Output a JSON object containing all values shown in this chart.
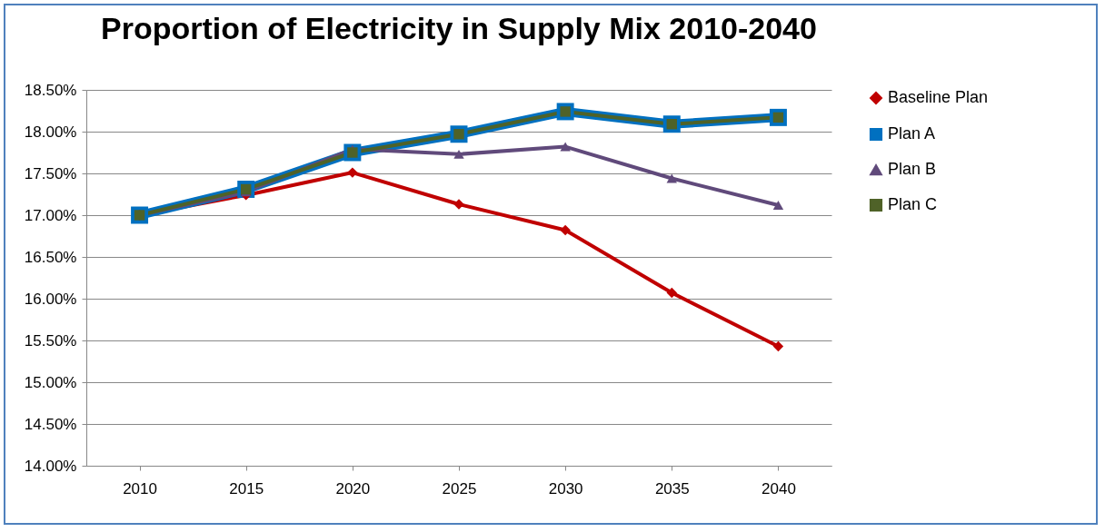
{
  "chart_data": {
    "type": "line",
    "title": "Proportion of Electricity in Supply Mix 2010-2040",
    "categories": [
      "2010",
      "2015",
      "2020",
      "2025",
      "2030",
      "2035",
      "2040"
    ],
    "series": [
      {
        "name": "Baseline Plan",
        "color": "#c00000",
        "marker": "diamond",
        "values": [
          17.0,
          17.24,
          17.51,
          17.13,
          16.82,
          16.07,
          15.43
        ]
      },
      {
        "name": "Plan A",
        "color": "#0070c0",
        "marker": "square",
        "values": [
          17.0,
          17.31,
          17.75,
          17.97,
          18.24,
          18.09,
          18.17
        ]
      },
      {
        "name": "Plan B",
        "color": "#604a7b",
        "marker": "triangle",
        "values": [
          17.0,
          17.28,
          17.79,
          17.73,
          17.82,
          17.44,
          17.12
        ]
      },
      {
        "name": "Plan C",
        "color": "#4f6228",
        "marker": "square",
        "values": [
          17.0,
          17.31,
          17.75,
          17.97,
          18.24,
          18.09,
          18.17
        ]
      }
    ],
    "ylim": [
      14,
      18.5
    ],
    "yticks": [
      {
        "value": 14,
        "label": "14.00%"
      },
      {
        "value": 14.5,
        "label": "14.50%"
      },
      {
        "value": 15,
        "label": "15.00%"
      },
      {
        "value": 15.5,
        "label": "15.50%"
      },
      {
        "value": 16,
        "label": "16.00%"
      },
      {
        "value": 16.5,
        "label": "16.50%"
      },
      {
        "value": 17,
        "label": "17.00%"
      },
      {
        "value": 17.5,
        "label": "17.50%"
      },
      {
        "value": 18,
        "label": "18.00%"
      },
      {
        "value": 18.5,
        "label": "18.50%"
      }
    ],
    "grid": "y",
    "legend": "right"
  }
}
